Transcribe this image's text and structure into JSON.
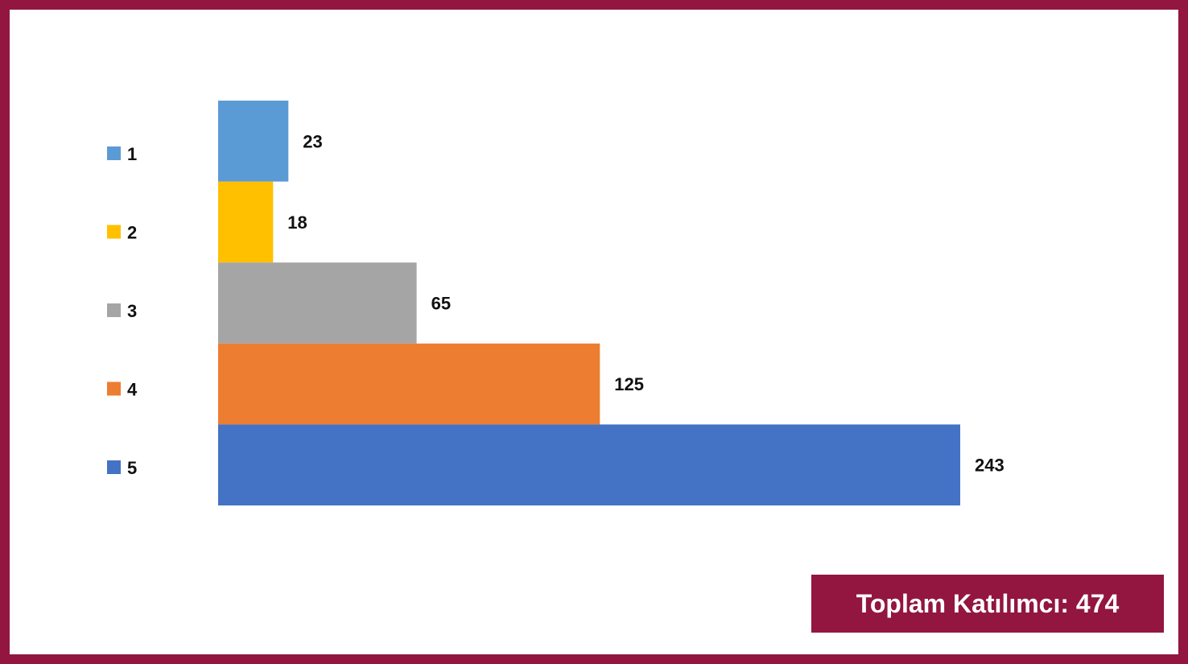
{
  "chart_data": {
    "type": "bar",
    "orientation": "horizontal",
    "categories": [
      "1",
      "2",
      "3",
      "4",
      "5"
    ],
    "values": [
      23,
      18,
      65,
      125,
      243
    ],
    "colors": [
      "#5b9bd5",
      "#ffc000",
      "#a5a5a5",
      "#ed7d31",
      "#4472c4"
    ],
    "legend_position": "left",
    "grid": false,
    "xlim": [
      0,
      260
    ]
  },
  "summary": {
    "total_label": "Toplam Katılımcı: 474"
  },
  "theme": {
    "frame_color": "#92163f",
    "box_text_color": "#ffffff"
  }
}
